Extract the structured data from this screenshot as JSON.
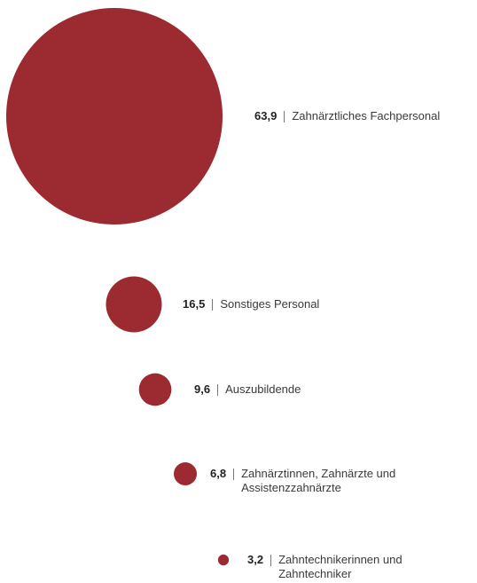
{
  "chart_data": {
    "type": "bubble",
    "categories": [
      "Zahnärztliches Fachpersonal",
      "Sonstiges Personal",
      "Auszubildende",
      "Zahnärztinnen, Zahnärzte und Assistenzzahnärzte",
      "Zahntechnikerinnen und Zahntechniker"
    ],
    "values": [
      63.9,
      16.5,
      9.6,
      6.8,
      3.2
    ],
    "value_labels": [
      "63,9",
      "16,5",
      "9,6",
      "6,8",
      "3,2"
    ],
    "color": "#9b2a31"
  }
}
